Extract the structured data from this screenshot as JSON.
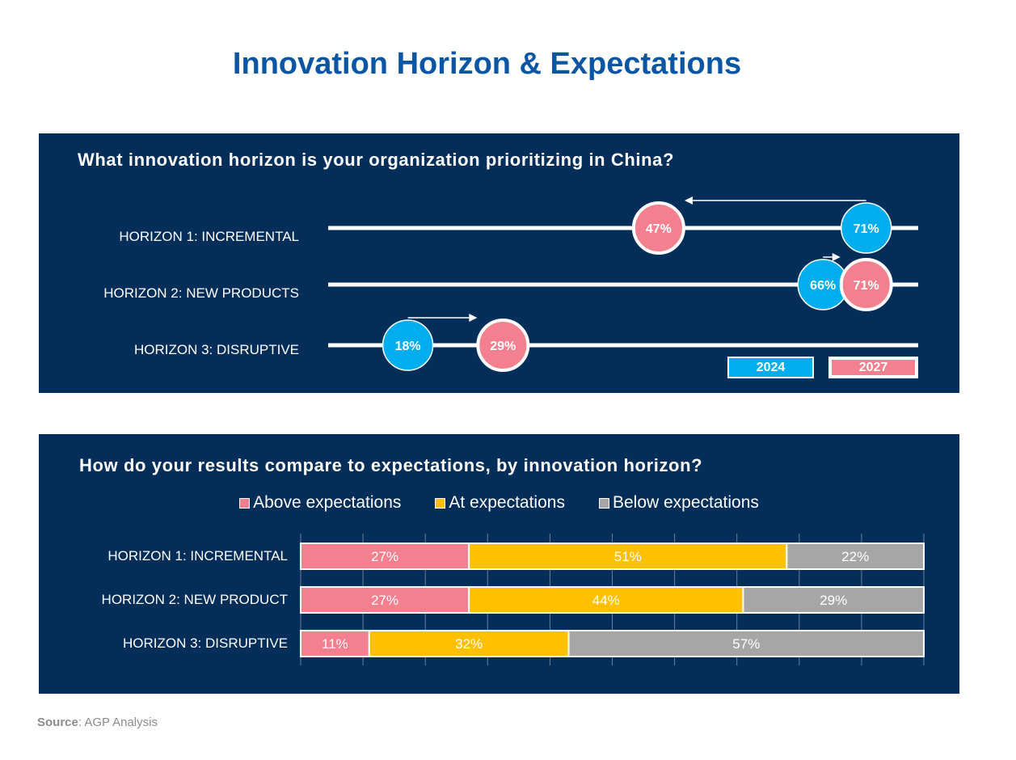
{
  "title": "Innovation Horizon & Expectations",
  "source": {
    "label": "Source",
    "text": ": AGP Analysis"
  },
  "colors": {
    "navy": "#042e5a",
    "title_blue": "#0b56a4",
    "blue_2024": "#00aeef",
    "pink_2027": "#f47f8f",
    "above": "#f47f8f",
    "at": "#ffc000",
    "below": "#a6a6a6"
  },
  "chart_data": [
    {
      "type": "scatter",
      "title": "What innovation horizon is your organization prioritizing in China?",
      "categories": [
        "HORIZON 1: INCREMENTAL",
        "HORIZON 2: NEW PRODUCTS",
        "HORIZON 3: DISRUPTIVE"
      ],
      "series": [
        {
          "name": "2024",
          "values": [
            71,
            66,
            18
          ],
          "labels": [
            "71%",
            "66%",
            "18%"
          ]
        },
        {
          "name": "2027",
          "values": [
            47,
            71,
            29
          ],
          "labels": [
            "47%",
            "71%",
            "29%"
          ]
        }
      ],
      "legend": [
        "2024",
        "2027"
      ],
      "legend_position": "bottom-right"
    },
    {
      "type": "bar",
      "stacked": true,
      "orientation": "horizontal",
      "title": "How do your results compare to expectations, by innovation horizon?",
      "categories": [
        "HORIZON 1: INCREMENTAL",
        "HORIZON 2: NEW PRODUCT",
        "HORIZON 3: DISRUPTIVE"
      ],
      "series": [
        {
          "name": "Above expectations",
          "values": [
            27,
            27,
            11
          ],
          "labels": [
            "27%",
            "27%",
            "11%"
          ]
        },
        {
          "name": "At expectations",
          "values": [
            51,
            44,
            32
          ],
          "labels": [
            "51%",
            "44%",
            "32%"
          ]
        },
        {
          "name": "Below expectations",
          "values": [
            22,
            29,
            57
          ],
          "labels": [
            "22%",
            "29%",
            "57%"
          ]
        }
      ],
      "xlim": [
        0,
        100
      ],
      "grid": true,
      "legend_position": "top"
    }
  ]
}
